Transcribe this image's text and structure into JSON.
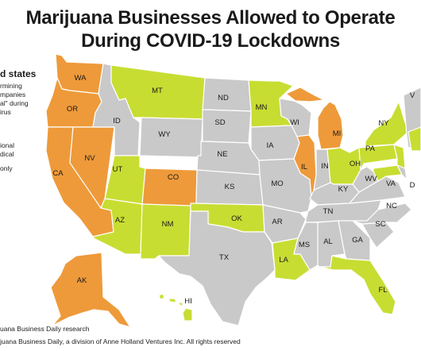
{
  "title": {
    "line1": "Marijuana Businesses Allowed to Operate",
    "line2": "During COVID-19 Lockdowns"
  },
  "legend": {
    "heading": "d states",
    "lines": [
      "rmining",
      "mpanies",
      "al\" during",
      "irus",
      "",
      "ional",
      "dical",
      "only"
    ]
  },
  "source": {
    "line1": "uana Business Daily research",
    "line2": "juana Business Daily, a division of Anne Holland Ventures Inc. All rights reserved"
  },
  "colors": {
    "orange": "#ee9a3a",
    "green": "#c8dd32",
    "gray": "#c9c9c9",
    "border": "#ffffff"
  },
  "states": [
    {
      "abbr": "WA",
      "category": "orange"
    },
    {
      "abbr": "OR",
      "category": "orange"
    },
    {
      "abbr": "CA",
      "category": "orange"
    },
    {
      "abbr": "NV",
      "category": "orange"
    },
    {
      "abbr": "AK",
      "category": "orange"
    },
    {
      "abbr": "CO",
      "category": "orange"
    },
    {
      "abbr": "MI",
      "category": "orange"
    },
    {
      "abbr": "IL",
      "category": "orange"
    },
    {
      "abbr": "MT",
      "category": "green"
    },
    {
      "abbr": "UT",
      "category": "green"
    },
    {
      "abbr": "AZ",
      "category": "green"
    },
    {
      "abbr": "NM",
      "category": "green"
    },
    {
      "abbr": "OK",
      "category": "green"
    },
    {
      "abbr": "LA",
      "category": "green"
    },
    {
      "abbr": "FL",
      "category": "green"
    },
    {
      "abbr": "MN",
      "category": "green"
    },
    {
      "abbr": "OH",
      "category": "green"
    },
    {
      "abbr": "PA",
      "category": "green"
    },
    {
      "abbr": "NY",
      "category": "green"
    },
    {
      "abbr": "HI",
      "category": "green"
    },
    {
      "abbr": "ID",
      "category": "gray"
    },
    {
      "abbr": "WY",
      "category": "gray"
    },
    {
      "abbr": "ND",
      "category": "gray"
    },
    {
      "abbr": "SD",
      "category": "gray"
    },
    {
      "abbr": "NE",
      "category": "gray"
    },
    {
      "abbr": "KS",
      "category": "gray"
    },
    {
      "abbr": "TX",
      "category": "gray"
    },
    {
      "abbr": "IA",
      "category": "gray"
    },
    {
      "abbr": "MO",
      "category": "gray"
    },
    {
      "abbr": "AR",
      "category": "gray"
    },
    {
      "abbr": "MS",
      "category": "gray"
    },
    {
      "abbr": "AL",
      "category": "gray"
    },
    {
      "abbr": "GA",
      "category": "gray"
    },
    {
      "abbr": "SC",
      "category": "gray"
    },
    {
      "abbr": "NC",
      "category": "gray"
    },
    {
      "abbr": "TN",
      "category": "gray"
    },
    {
      "abbr": "KY",
      "category": "gray"
    },
    {
      "abbr": "IN",
      "category": "gray"
    },
    {
      "abbr": "WI",
      "category": "gray"
    },
    {
      "abbr": "WV",
      "category": "gray"
    },
    {
      "abbr": "VA",
      "category": "gray"
    },
    {
      "abbr": "V",
      "category": "gray"
    },
    {
      "abbr": "D",
      "category": "gray"
    }
  ]
}
